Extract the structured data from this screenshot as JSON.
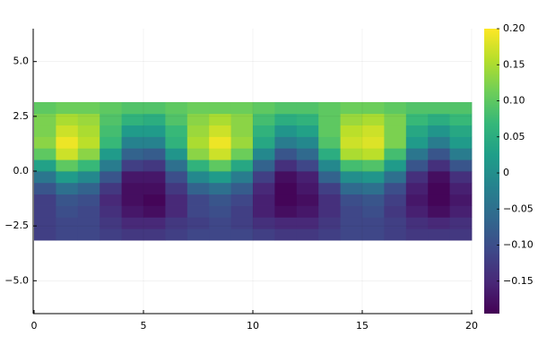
{
  "chart_data": {
    "type": "heatmap",
    "x": [
      0,
      1,
      2,
      3,
      4,
      5,
      6,
      7,
      8,
      9,
      10,
      11,
      12,
      13,
      14,
      15,
      16,
      17,
      18,
      19,
      20
    ],
    "y": [
      -3.15,
      -2.625,
      -2.1,
      -1.575,
      -1.05,
      -0.525,
      0,
      0.525,
      1.05,
      1.575,
      2.1,
      2.625,
      3.15
    ],
    "z": [
      [
        -0.12,
        -0.11,
        -0.11,
        -0.12,
        -0.13,
        -0.13,
        -0.12,
        -0.11,
        -0.11,
        -0.11,
        -0.12,
        -0.13,
        -0.13,
        -0.12,
        -0.11,
        -0.11,
        -0.12,
        -0.13,
        -0.13,
        -0.13
      ],
      [
        -0.12,
        -0.11,
        -0.11,
        -0.13,
        -0.15,
        -0.15,
        -0.13,
        -0.12,
        -0.11,
        -0.12,
        -0.14,
        -0.15,
        -0.15,
        -0.13,
        -0.11,
        -0.11,
        -0.12,
        -0.14,
        -0.15,
        -0.14
      ],
      [
        -0.12,
        -0.1,
        -0.11,
        -0.14,
        -0.17,
        -0.18,
        -0.15,
        -0.11,
        -0.1,
        -0.12,
        -0.16,
        -0.18,
        -0.17,
        -0.14,
        -0.11,
        -0.1,
        -0.13,
        -0.16,
        -0.18,
        -0.16
      ],
      [
        -0.12,
        -0.09,
        -0.1,
        -0.15,
        -0.18,
        -0.19,
        -0.15,
        -0.11,
        -0.09,
        -0.11,
        -0.16,
        -0.19,
        -0.18,
        -0.14,
        -0.1,
        -0.09,
        -0.12,
        -0.17,
        -0.19,
        -0.17
      ],
      [
        -0.09,
        -0.05,
        -0.07,
        -0.13,
        -0.18,
        -0.18,
        -0.13,
        -0.07,
        -0.05,
        -0.08,
        -0.15,
        -0.19,
        -0.17,
        -0.12,
        -0.06,
        -0.05,
        -0.1,
        -0.16,
        -0.19,
        -0.16
      ],
      [
        -0.04,
        0.02,
        -0.01,
        -0.09,
        -0.17,
        -0.17,
        -0.1,
        -0.01,
        0.02,
        -0.03,
        -0.12,
        -0.18,
        -0.16,
        -0.07,
        0.0,
        0.01,
        -0.05,
        -0.14,
        -0.18,
        -0.14
      ],
      [
        0.03,
        0.1,
        0.07,
        -0.03,
        -0.12,
        -0.13,
        -0.05,
        0.06,
        0.1,
        0.04,
        -0.07,
        -0.14,
        -0.11,
        -0.01,
        0.08,
        0.09,
        0.02,
        -0.09,
        -0.14,
        -0.09
      ],
      [
        0.1,
        0.17,
        0.13,
        0.02,
        -0.07,
        -0.08,
        0.01,
        0.13,
        0.17,
        0.11,
        -0.01,
        -0.09,
        -0.06,
        0.05,
        0.15,
        0.16,
        0.08,
        -0.04,
        -0.09,
        -0.03
      ],
      [
        0.13,
        0.19,
        0.16,
        0.07,
        -0.02,
        -0.02,
        0.06,
        0.15,
        0.19,
        0.14,
        0.04,
        -0.03,
        -0.01,
        0.09,
        0.17,
        0.18,
        0.12,
        0.02,
        -0.03,
        0.02
      ],
      [
        0.12,
        0.17,
        0.15,
        0.08,
        0.02,
        0.02,
        0.07,
        0.14,
        0.17,
        0.13,
        0.06,
        0.01,
        0.03,
        0.1,
        0.16,
        0.17,
        0.12,
        0.04,
        0.01,
        0.04
      ],
      [
        0.12,
        0.15,
        0.14,
        0.09,
        0.06,
        0.05,
        0.09,
        0.13,
        0.15,
        0.13,
        0.08,
        0.05,
        0.06,
        0.1,
        0.14,
        0.15,
        0.12,
        0.07,
        0.05,
        0.07
      ],
      [
        0.1,
        0.11,
        0.11,
        0.1,
        0.09,
        0.09,
        0.1,
        0.11,
        0.11,
        0.11,
        0.1,
        0.09,
        0.09,
        0.1,
        0.11,
        0.11,
        0.1,
        0.09,
        0.09,
        0.09
      ]
    ],
    "xlim": [
      0,
      20
    ],
    "xticks": [
      0,
      5,
      10,
      15,
      20
    ],
    "ylim": [
      -6.5,
      6.5
    ],
    "yticks": [
      {
        "value": -5,
        "label": "−5.0"
      },
      {
        "value": -2.5,
        "label": "−2.5"
      },
      {
        "value": 0,
        "label": "0.0"
      },
      {
        "value": 2.5,
        "label": "2.5"
      },
      {
        "value": 5,
        "label": "5.0"
      }
    ],
    "clim": [
      -0.195,
      0.2
    ],
    "cticks": [
      {
        "value": -0.15,
        "label": "−0.15"
      },
      {
        "value": -0.1,
        "label": "−0.10"
      },
      {
        "value": -0.05,
        "label": "−0.05"
      },
      0,
      {
        "value": 0.05,
        "label": "0.05"
      },
      {
        "value": 0.1,
        "label": "0.10"
      },
      {
        "value": 0.15,
        "label": "0.15"
      },
      {
        "value": 0.2,
        "label": "0.20"
      }
    ],
    "colormap": [
      "#440154",
      "#482878",
      "#3e4989",
      "#31688e",
      "#26828e",
      "#1f9e89",
      "#35b779",
      "#6ece58",
      "#b5de2b",
      "#fde725"
    ],
    "grid": true
  }
}
